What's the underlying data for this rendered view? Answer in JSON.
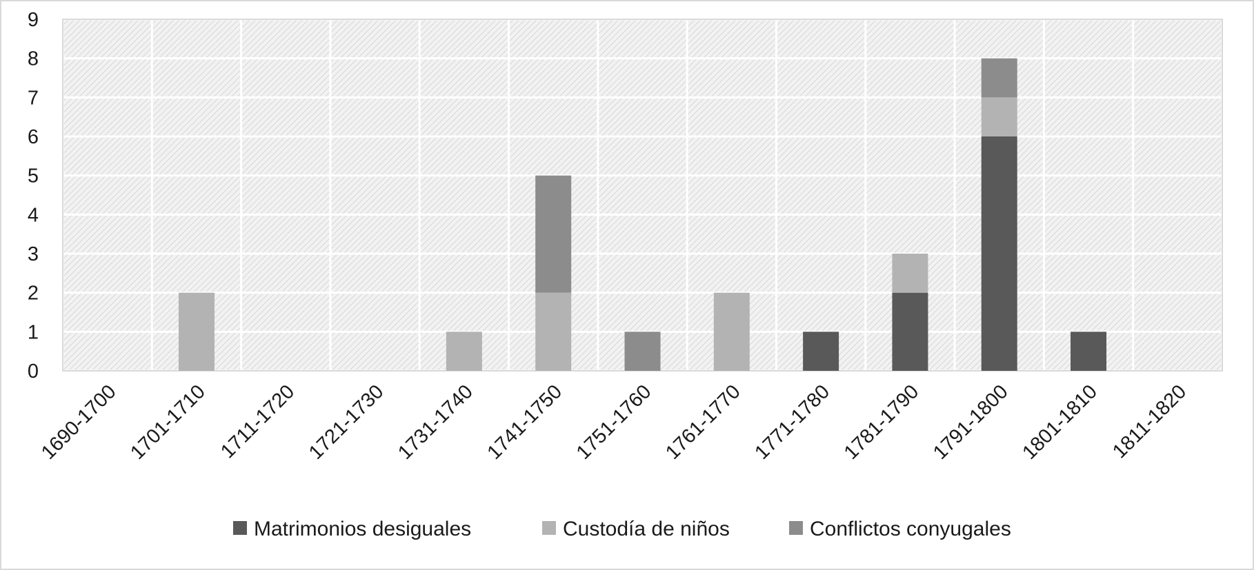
{
  "chart_data": {
    "type": "bar",
    "stacked": true,
    "categories": [
      "1690-1700",
      "1701-1710",
      "1711-1720",
      "1721-1730",
      "1731-1740",
      "1741-1750",
      "1751-1760",
      "1761-1770",
      "1771-1780",
      "1781-1790",
      "1791-1800",
      "1801-1810",
      "1811-1820"
    ],
    "series": [
      {
        "name": "Matrimonios desiguales",
        "color": "#595959",
        "values": [
          0,
          0,
          0,
          0,
          0,
          0,
          0,
          0,
          1,
          2,
          6,
          1,
          0
        ]
      },
      {
        "name": "Custodía de niños",
        "color": "#b3b3b3",
        "values": [
          0,
          2,
          0,
          0,
          1,
          2,
          0,
          2,
          0,
          1,
          1,
          0,
          0
        ]
      },
      {
        "name": "Conflictos conyugales",
        "color": "#8c8c8c",
        "values": [
          0,
          0,
          0,
          0,
          0,
          3,
          1,
          0,
          0,
          0,
          1,
          0,
          0
        ]
      }
    ],
    "yticks": [
      0,
      1,
      2,
      3,
      4,
      5,
      6,
      7,
      8,
      9
    ],
    "ylim": [
      0,
      9
    ],
    "grid": true,
    "legend_position": "bottom",
    "title": "",
    "xlabel": "",
    "ylabel": ""
  }
}
